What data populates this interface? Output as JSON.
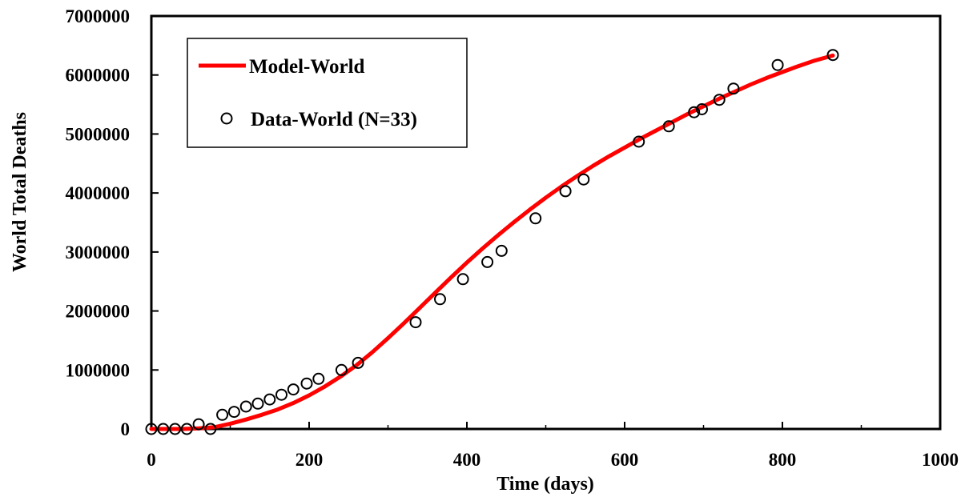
{
  "chart_data": {
    "type": "scatter",
    "title": "",
    "xlabel": "Time (days)",
    "ylabel": "World Total Deaths",
    "xlim": [
      0,
      1000
    ],
    "ylim": [
      0,
      7000000
    ],
    "x_ticks": [
      0,
      200,
      400,
      600,
      800,
      1000
    ],
    "y_ticks": [
      0,
      1000000,
      2000000,
      3000000,
      4000000,
      5000000,
      6000000,
      7000000
    ],
    "grid": false,
    "legend_position": "top-left",
    "series": [
      {
        "name": "Model-World",
        "kind": "line",
        "color": "#ff0000",
        "x": [
          0,
          20,
          40,
          60,
          80,
          100,
          120,
          140,
          160,
          180,
          200,
          220,
          240,
          260,
          280,
          300,
          320,
          340,
          360,
          380,
          400,
          420,
          440,
          460,
          480,
          500,
          520,
          540,
          560,
          580,
          600,
          620,
          640,
          660,
          680,
          700,
          720,
          740,
          760,
          780,
          800,
          820,
          840,
          864
        ],
        "y": [
          0,
          0,
          0,
          10000,
          30000,
          90000,
          160000,
          240000,
          330000,
          440000,
          570000,
          720000,
          890000,
          1080000,
          1300000,
          1540000,
          1790000,
          2050000,
          2310000,
          2570000,
          2820000,
          3060000,
          3290000,
          3510000,
          3720000,
          3920000,
          4110000,
          4290000,
          4460000,
          4620000,
          4770000,
          4920000,
          5060000,
          5200000,
          5340000,
          5470000,
          5600000,
          5720000,
          5840000,
          5950000,
          6050000,
          6150000,
          6240000,
          6330000
        ]
      },
      {
        "name": "Data-World (N=33)",
        "kind": "scatter",
        "color": "#000000",
        "x": [
          0,
          15,
          30,
          45,
          60,
          75,
          90,
          105,
          120,
          135,
          150,
          165,
          180,
          197,
          212,
          241,
          262,
          335,
          366,
          395,
          426,
          444,
          487,
          525,
          548,
          618,
          656,
          688,
          698,
          720,
          738,
          794,
          864
        ],
        "y": [
          0,
          0,
          0,
          0,
          80000,
          0,
          240000,
          290000,
          380000,
          430000,
          500000,
          580000,
          670000,
          770000,
          850000,
          1000000,
          1120000,
          1810000,
          2200000,
          2540000,
          2830000,
          3020000,
          3570000,
          4030000,
          4230000,
          4870000,
          5130000,
          5370000,
          5420000,
          5580000,
          5770000,
          6170000,
          6340000
        ]
      }
    ]
  }
}
